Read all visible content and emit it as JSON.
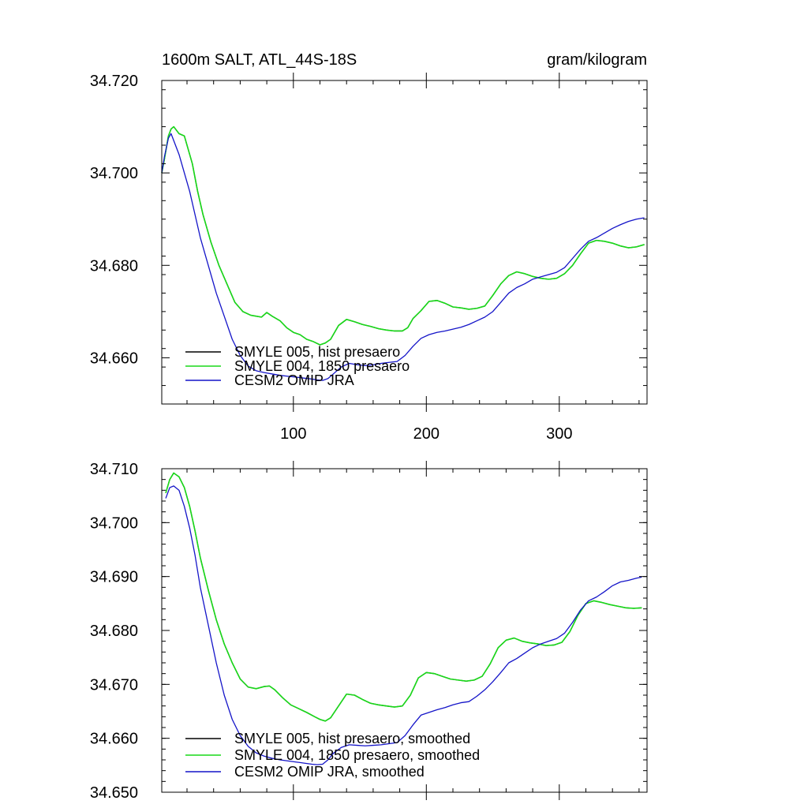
{
  "chart_data": [
    {
      "type": "line",
      "title": "1600m SALT, ATL_44S-18S",
      "units": "gram/kilogram",
      "xlim": [
        1,
        366
      ],
      "ylim": [
        34.65,
        34.72
      ],
      "x_ticks": [
        100,
        200,
        300
      ],
      "x_tick_labels": [
        "100",
        "200",
        "300"
      ],
      "y_ticks": [
        34.66,
        34.68,
        34.7,
        34.72
      ],
      "y_tick_labels": [
        "34.660",
        "34.680",
        "34.700",
        "34.720"
      ],
      "series": [
        {
          "name": "SMYLE 005, hist presaero",
          "color": "#000000",
          "x": [
            1,
            3,
            6,
            8,
            10,
            14,
            18,
            20,
            24,
            28,
            32,
            38,
            44,
            50,
            56,
            62,
            68,
            72,
            76,
            80,
            84,
            90,
            95,
            100,
            105,
            110,
            115,
            120,
            124,
            128,
            134,
            140,
            146,
            152,
            158,
            164,
            170,
            176,
            182,
            186,
            190,
            196,
            202,
            208,
            214,
            220,
            226,
            232,
            238,
            244,
            250,
            256,
            262,
            268,
            274,
            280,
            286,
            292,
            298,
            304,
            310,
            316,
            322,
            328,
            334,
            340,
            346,
            352,
            358,
            364
          ],
          "values": [
            34.7,
            34.703,
            34.708,
            34.7095,
            34.71,
            34.7085,
            34.708,
            34.706,
            34.702,
            34.696,
            34.691,
            34.685,
            34.68,
            34.676,
            34.672,
            34.67,
            34.6692,
            34.669,
            34.6688,
            34.6698,
            34.669,
            34.668,
            34.6665,
            34.6655,
            34.665,
            34.664,
            34.6635,
            34.6628,
            34.6632,
            34.664,
            34.667,
            34.6683,
            34.6678,
            34.6672,
            34.6668,
            34.6663,
            34.666,
            34.6658,
            34.6658,
            34.6665,
            34.6685,
            34.6702,
            34.6722,
            34.6724,
            34.6718,
            34.671,
            34.6708,
            34.6705,
            34.6707,
            34.6712,
            34.6735,
            34.676,
            34.6778,
            34.6786,
            34.6782,
            34.6776,
            34.6772,
            34.677,
            34.6772,
            34.6782,
            34.68,
            34.6825,
            34.6848,
            34.6854,
            34.6852,
            34.6848,
            34.6842,
            34.6838,
            34.684,
            34.6845
          ]
        },
        {
          "name": "SMYLE 004, 1850 presaero",
          "color": "#19d819",
          "x": [
            1,
            3,
            6,
            8,
            10,
            14,
            18,
            20,
            24,
            28,
            32,
            38,
            44,
            50,
            56,
            62,
            68,
            72,
            76,
            80,
            84,
            90,
            95,
            100,
            105,
            110,
            115,
            120,
            124,
            128,
            134,
            140,
            146,
            152,
            158,
            164,
            170,
            176,
            182,
            186,
            190,
            196,
            202,
            208,
            214,
            220,
            226,
            232,
            238,
            244,
            250,
            256,
            262,
            268,
            274,
            280,
            286,
            292,
            298,
            304,
            310,
            316,
            322,
            328,
            334,
            340,
            346,
            352,
            358,
            364
          ],
          "values": [
            34.7,
            34.703,
            34.708,
            34.7095,
            34.71,
            34.7085,
            34.708,
            34.706,
            34.702,
            34.696,
            34.691,
            34.685,
            34.68,
            34.676,
            34.672,
            34.67,
            34.6692,
            34.669,
            34.6688,
            34.6698,
            34.669,
            34.668,
            34.6665,
            34.6655,
            34.665,
            34.664,
            34.6635,
            34.6628,
            34.6632,
            34.664,
            34.667,
            34.6683,
            34.6678,
            34.6672,
            34.6668,
            34.6663,
            34.666,
            34.6658,
            34.6658,
            34.6665,
            34.6685,
            34.6702,
            34.6722,
            34.6724,
            34.6718,
            34.671,
            34.6708,
            34.6705,
            34.6707,
            34.6712,
            34.6735,
            34.676,
            34.6778,
            34.6786,
            34.6782,
            34.6776,
            34.6772,
            34.677,
            34.6772,
            34.6782,
            34.68,
            34.6825,
            34.6848,
            34.6854,
            34.6852,
            34.6848,
            34.6842,
            34.6838,
            34.684,
            34.6845
          ]
        },
        {
          "name": "CESM2 OMIP JRA",
          "color": "#1414c8",
          "x": [
            1,
            3,
            6,
            8,
            10,
            14,
            18,
            22,
            26,
            30,
            36,
            42,
            48,
            54,
            60,
            66,
            72,
            78,
            84,
            90,
            96,
            102,
            108,
            114,
            118,
            122,
            126,
            130,
            136,
            142,
            148,
            154,
            160,
            166,
            172,
            178,
            184,
            190,
            196,
            202,
            208,
            214,
            220,
            226,
            232,
            238,
            244,
            250,
            256,
            262,
            268,
            274,
            280,
            286,
            292,
            298,
            304,
            310,
            316,
            322,
            328,
            334,
            340,
            346,
            352,
            358,
            364
          ],
          "values": [
            34.7,
            34.7035,
            34.7075,
            34.7085,
            34.707,
            34.704,
            34.7,
            34.696,
            34.691,
            34.686,
            34.68,
            34.674,
            34.669,
            34.664,
            34.6605,
            34.6582,
            34.6572,
            34.6568,
            34.6565,
            34.6562,
            34.656,
            34.6558,
            34.6556,
            34.6554,
            34.6552,
            34.6551,
            34.6555,
            34.6565,
            34.658,
            34.6588,
            34.6585,
            34.6583,
            34.6585,
            34.6588,
            34.659,
            34.6592,
            34.6605,
            34.6625,
            34.6642,
            34.665,
            34.6655,
            34.6658,
            34.6662,
            34.6666,
            34.6672,
            34.668,
            34.6688,
            34.67,
            34.672,
            34.674,
            34.6752,
            34.676,
            34.677,
            34.6775,
            34.678,
            34.6785,
            34.6795,
            34.6815,
            34.6835,
            34.6852,
            34.686,
            34.687,
            34.688,
            34.6888,
            34.6895,
            34.69,
            34.6903
          ]
        }
      ]
    },
    {
      "type": "line",
      "title": "",
      "xlim": [
        1,
        366
      ],
      "ylim": [
        34.65,
        34.71
      ],
      "x_ticks": [
        100,
        200,
        300
      ],
      "x_tick_labels": [],
      "y_ticks": [
        34.65,
        34.66,
        34.67,
        34.68,
        34.69,
        34.7,
        34.71
      ],
      "y_tick_labels": [
        "34.650",
        "34.660",
        "34.670",
        "34.680",
        "34.690",
        "34.700",
        "34.710"
      ],
      "series": [
        {
          "name": "SMYLE 005, hist presaero, smoothed",
          "color": "#000000",
          "x": [
            4,
            7,
            10,
            14,
            18,
            22,
            26,
            30,
            36,
            42,
            48,
            54,
            60,
            66,
            72,
            78,
            82,
            86,
            92,
            98,
            104,
            110,
            116,
            120,
            124,
            128,
            134,
            140,
            146,
            152,
            158,
            164,
            170,
            176,
            182,
            188,
            194,
            200,
            206,
            212,
            218,
            224,
            230,
            236,
            242,
            248,
            254,
            260,
            266,
            272,
            278,
            284,
            290,
            296,
            302,
            308,
            314,
            320,
            326,
            332,
            338,
            344,
            350,
            356,
            362
          ],
          "values": [
            34.7055,
            34.708,
            34.7092,
            34.7085,
            34.7065,
            34.703,
            34.6985,
            34.6935,
            34.6875,
            34.682,
            34.6775,
            34.674,
            34.671,
            34.6695,
            34.6692,
            34.6696,
            34.6697,
            34.669,
            34.6675,
            34.6662,
            34.6655,
            34.6648,
            34.664,
            34.6635,
            34.6632,
            34.6638,
            34.666,
            34.6682,
            34.668,
            34.6672,
            34.6665,
            34.6662,
            34.666,
            34.6658,
            34.666,
            34.668,
            34.6712,
            34.6722,
            34.672,
            34.6715,
            34.671,
            34.6708,
            34.6706,
            34.6708,
            34.6715,
            34.6738,
            34.6768,
            34.6782,
            34.6786,
            34.678,
            34.6777,
            34.6775,
            34.6772,
            34.6773,
            34.6778,
            34.6798,
            34.6828,
            34.685,
            34.6855,
            34.6852,
            34.6848,
            34.6845,
            34.6842,
            34.6841,
            34.6842
          ]
        },
        {
          "name": "SMYLE 004, 1850 presaero, smoothed",
          "color": "#19d819",
          "x": [
            4,
            7,
            10,
            14,
            18,
            22,
            26,
            30,
            36,
            42,
            48,
            54,
            60,
            66,
            72,
            78,
            82,
            86,
            92,
            98,
            104,
            110,
            116,
            120,
            124,
            128,
            134,
            140,
            146,
            152,
            158,
            164,
            170,
            176,
            182,
            188,
            194,
            200,
            206,
            212,
            218,
            224,
            230,
            236,
            242,
            248,
            254,
            260,
            266,
            272,
            278,
            284,
            290,
            296,
            302,
            308,
            314,
            320,
            326,
            332,
            338,
            344,
            350,
            356,
            362
          ],
          "values": [
            34.7055,
            34.708,
            34.7092,
            34.7085,
            34.7065,
            34.703,
            34.6985,
            34.6935,
            34.6875,
            34.682,
            34.6775,
            34.674,
            34.671,
            34.6695,
            34.6692,
            34.6696,
            34.6697,
            34.669,
            34.6675,
            34.6662,
            34.6655,
            34.6648,
            34.664,
            34.6635,
            34.6632,
            34.6638,
            34.666,
            34.6682,
            34.668,
            34.6672,
            34.6665,
            34.6662,
            34.666,
            34.6658,
            34.666,
            34.668,
            34.6712,
            34.6722,
            34.672,
            34.6715,
            34.671,
            34.6708,
            34.6706,
            34.6708,
            34.6715,
            34.6738,
            34.6768,
            34.6782,
            34.6786,
            34.678,
            34.6777,
            34.6775,
            34.6772,
            34.6773,
            34.6778,
            34.6798,
            34.6828,
            34.685,
            34.6855,
            34.6852,
            34.6848,
            34.6845,
            34.6842,
            34.6841,
            34.6842
          ]
        },
        {
          "name": "CESM2 OMIP JRA, smoothed",
          "color": "#1414c8",
          "x": [
            4,
            7,
            10,
            14,
            18,
            22,
            26,
            30,
            36,
            42,
            48,
            54,
            60,
            66,
            72,
            78,
            84,
            90,
            96,
            102,
            108,
            114,
            118,
            122,
            126,
            130,
            136,
            142,
            148,
            154,
            160,
            166,
            172,
            178,
            184,
            190,
            196,
            202,
            208,
            214,
            220,
            226,
            232,
            238,
            244,
            250,
            256,
            262,
            268,
            274,
            280,
            286,
            292,
            298,
            304,
            310,
            316,
            322,
            328,
            334,
            340,
            346,
            352,
            358,
            362
          ],
          "values": [
            34.7045,
            34.7065,
            34.7068,
            34.706,
            34.703,
            34.699,
            34.694,
            34.688,
            34.681,
            34.674,
            34.668,
            34.6635,
            34.6605,
            34.6585,
            34.6573,
            34.6567,
            34.6563,
            34.656,
            34.6558,
            34.6556,
            34.6554,
            34.6552,
            34.6551,
            34.6552,
            34.656,
            34.6572,
            34.6583,
            34.6588,
            34.6587,
            34.6586,
            34.6587,
            34.6588,
            34.659,
            34.6592,
            34.6605,
            34.6625,
            34.6643,
            34.6648,
            34.6653,
            34.6657,
            34.6662,
            34.6666,
            34.6668,
            34.6678,
            34.669,
            34.6705,
            34.6722,
            34.674,
            34.6748,
            34.6758,
            34.6768,
            34.6775,
            34.678,
            34.6785,
            34.6795,
            34.6815,
            34.6838,
            34.6855,
            34.6862,
            34.6872,
            34.6883,
            34.689,
            34.6893,
            34.6897,
            34.6899
          ]
        }
      ]
    }
  ]
}
